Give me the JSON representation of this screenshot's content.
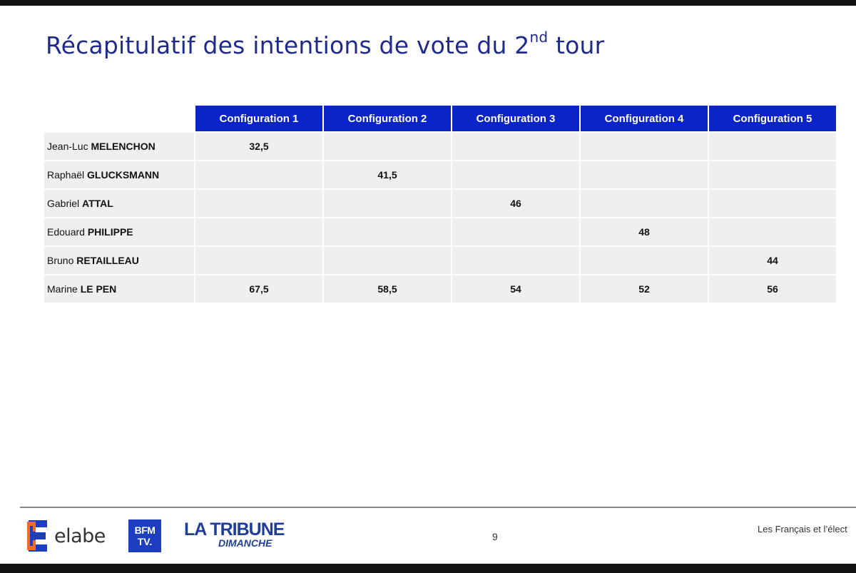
{
  "title": {
    "main": "Récapitulatif des intentions de vote du 2",
    "sup": "nd",
    "tail": " tour"
  },
  "table": {
    "headers": [
      "Configuration 1",
      "Configuration 2",
      "Configuration 3",
      "Configuration 4",
      "Configuration 5"
    ],
    "rows": [
      {
        "first": "Jean-Luc",
        "last": "MELENCHON",
        "values": [
          "32,5",
          "",
          "",
          "",
          ""
        ]
      },
      {
        "first": "Raphaël",
        "last": "GLUCKSMANN",
        "values": [
          "",
          "41,5",
          "",
          "",
          ""
        ]
      },
      {
        "first": "Gabriel",
        "last": "ATTAL",
        "values": [
          "",
          "",
          "46",
          "",
          ""
        ]
      },
      {
        "first": "Edouard",
        "last": "PHILIPPE",
        "values": [
          "",
          "",
          "",
          "48",
          ""
        ]
      },
      {
        "first": "Bruno",
        "last": "RETAILLEAU",
        "values": [
          "",
          "",
          "",
          "",
          "44"
        ]
      },
      {
        "first": "Marine",
        "last": "LE PEN",
        "values": [
          "67,5",
          "58,5",
          "54",
          "52",
          "56"
        ]
      }
    ]
  },
  "footer": {
    "logos": {
      "elabe": "elabe",
      "bfm_line1": "BFM",
      "bfm_line2": "TV.",
      "tribune_line1": "LA TRIBUNE",
      "tribune_line2": "DIMANCHE"
    },
    "page_number": "9",
    "text": "Les Français et l’élect"
  },
  "colors": {
    "title": "#1e2a8c",
    "header_bg": "#0b24c8",
    "cell_bg": "#efefef",
    "elabe_orange": "#f26b21",
    "elabe_blue": "#1d3fbf"
  }
}
